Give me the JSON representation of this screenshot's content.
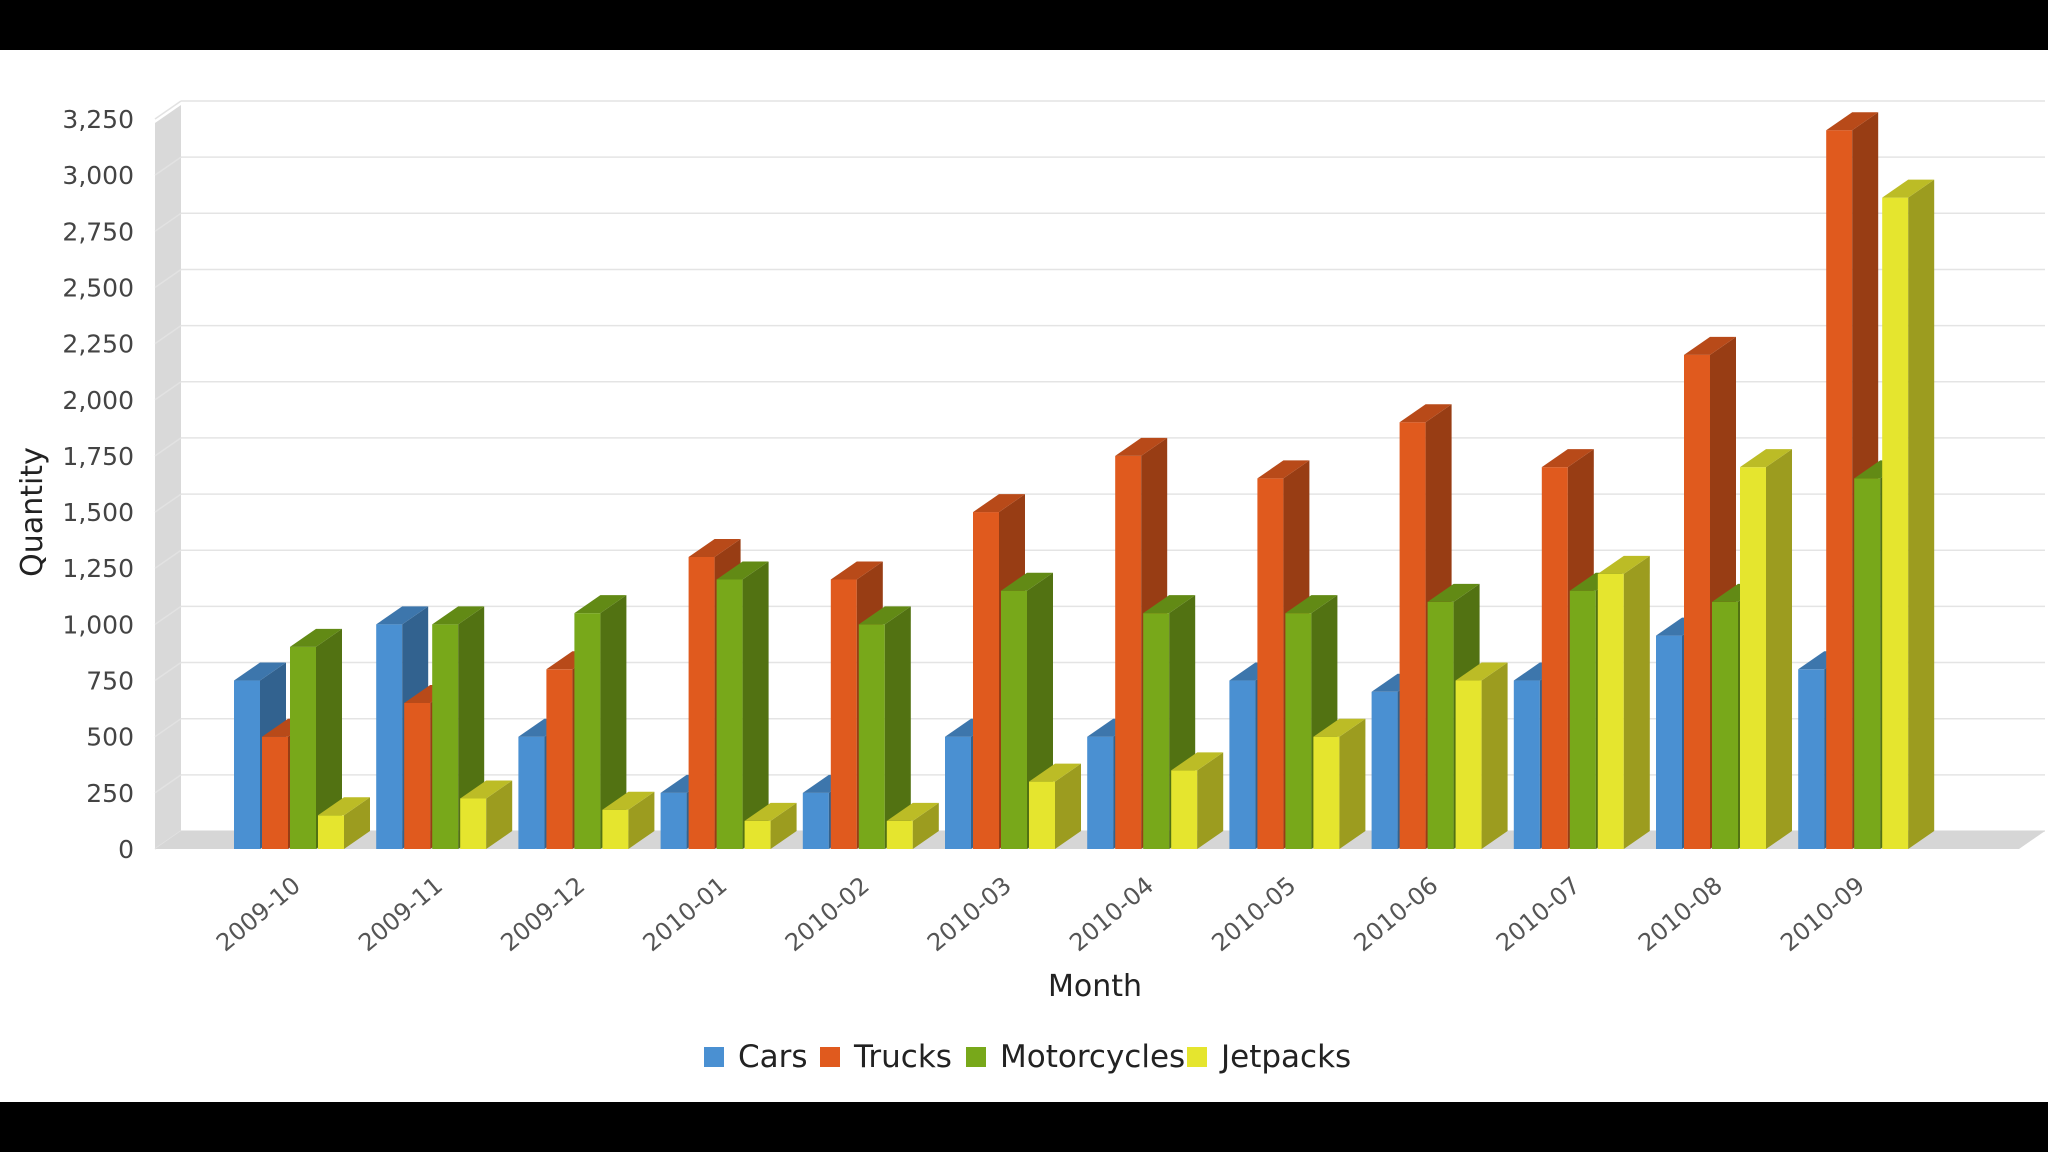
{
  "chart_data": {
    "type": "bar",
    "title": "",
    "xlabel": "Month",
    "ylabel": "Quantity",
    "ylim": [
      0,
      3250
    ],
    "yticks": [
      0,
      250,
      500,
      750,
      1000,
      1250,
      1500,
      1750,
      2000,
      2250,
      2500,
      2750,
      3000,
      3250
    ],
    "ytick_labels": [
      "0",
      "250",
      "500",
      "750",
      "1,000",
      "1,250",
      "1,500",
      "1,750",
      "2,000",
      "2,250",
      "2,500",
      "2,750",
      "3,000",
      "3,250"
    ],
    "categories": [
      "2009-10",
      "2009-11",
      "2009-12",
      "2010-01",
      "2010-02",
      "2010-03",
      "2010-04",
      "2010-05",
      "2010-06",
      "2010-07",
      "2010-08",
      "2010-09"
    ],
    "series": [
      {
        "name": "Cars",
        "color": "#4a90d2",
        "values": [
          750,
          1000,
          500,
          250,
          250,
          500,
          500,
          750,
          700,
          750,
          950,
          800
        ]
      },
      {
        "name": "Trucks",
        "color": "#e05a1e",
        "values": [
          500,
          650,
          800,
          1300,
          1200,
          1500,
          1750,
          1650,
          1900,
          1700,
          2200,
          3200
        ]
      },
      {
        "name": "Motorcycles",
        "color": "#78a81a",
        "values": [
          900,
          1000,
          1050,
          1200,
          1000,
          1150,
          1050,
          1050,
          1100,
          1150,
          1100,
          1650
        ]
      },
      {
        "name": "Jetpacks",
        "color": "#e5e52e",
        "values": [
          150,
          225,
          175,
          125,
          125,
          300,
          350,
          500,
          750,
          1225,
          1700,
          2900
        ]
      }
    ],
    "grid": true,
    "legend_position": "bottom-center",
    "three_d": true
  }
}
